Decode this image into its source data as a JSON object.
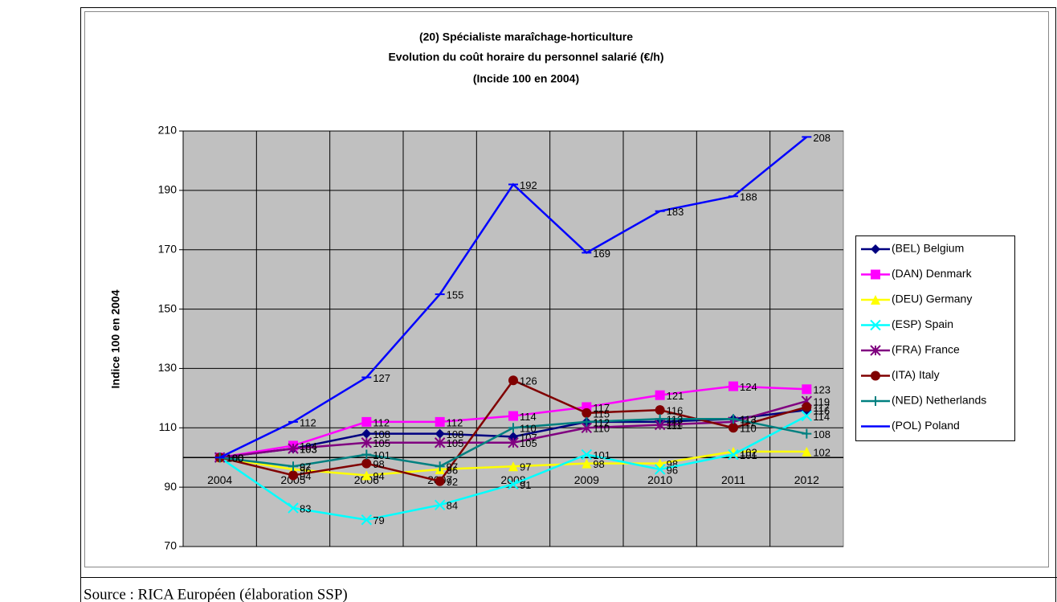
{
  "chart_data": {
    "type": "line",
    "title": [
      "(20) Spécialiste maraîchage-horticulture",
      "Evolution du coût horaire du personnel salarié (€/h)",
      "(Incide 100 en 2004)"
    ],
    "y_label": "Indice 100 en 2004",
    "categories": [
      "2004",
      "2005",
      "2006",
      "2007",
      "2008",
      "2009",
      "2010",
      "2011",
      "2012"
    ],
    "ylim": [
      70,
      210
    ],
    "yticks": [
      70,
      90,
      110,
      130,
      150,
      170,
      190,
      210
    ],
    "grid": true,
    "legend": "right",
    "series": [
      {
        "name": "(BEL) Belgium",
        "color": "#000080",
        "marker": "diamond",
        "values": [
          100,
          103,
          108,
          108,
          107,
          112,
          112,
          113,
          116
        ]
      },
      {
        "name": "(DAN) Denmark",
        "color": "#ff00ff",
        "marker": "square",
        "values": [
          100,
          104,
          112,
          112,
          114,
          117,
          121,
          124,
          123
        ]
      },
      {
        "name": "(DEU) Germany",
        "color": "#ffff00",
        "marker": "triangle",
        "values": [
          100,
          96,
          94,
          96,
          97,
          98,
          98,
          102,
          102
        ]
      },
      {
        "name": "(ESP) Spain",
        "color": "#00ffff",
        "marker": "x",
        "values": [
          100,
          83,
          79,
          84,
          91,
          101,
          96,
          101,
          114
        ]
      },
      {
        "name": "(FRA) France",
        "color": "#800080",
        "marker": "star",
        "values": [
          100,
          103,
          105,
          105,
          105,
          110,
          111,
          112,
          119
        ]
      },
      {
        "name": "(ITA) Italy",
        "color": "#800000",
        "marker": "circle",
        "values": [
          100,
          94,
          98,
          92,
          126,
          115,
          116,
          110,
          117
        ]
      },
      {
        "name": "(NED) Netherlands",
        "color": "#008080",
        "marker": "plus",
        "values": [
          100,
          97,
          101,
          97,
          110,
          112,
          113,
          113,
          108
        ]
      },
      {
        "name": "(POL) Poland",
        "color": "#0000ff",
        "marker": "dash",
        "values": [
          100,
          112,
          127,
          155,
          192,
          169,
          183,
          188,
          208
        ]
      }
    ]
  },
  "source": "Source : RICA Européen (élaboration SSP)"
}
